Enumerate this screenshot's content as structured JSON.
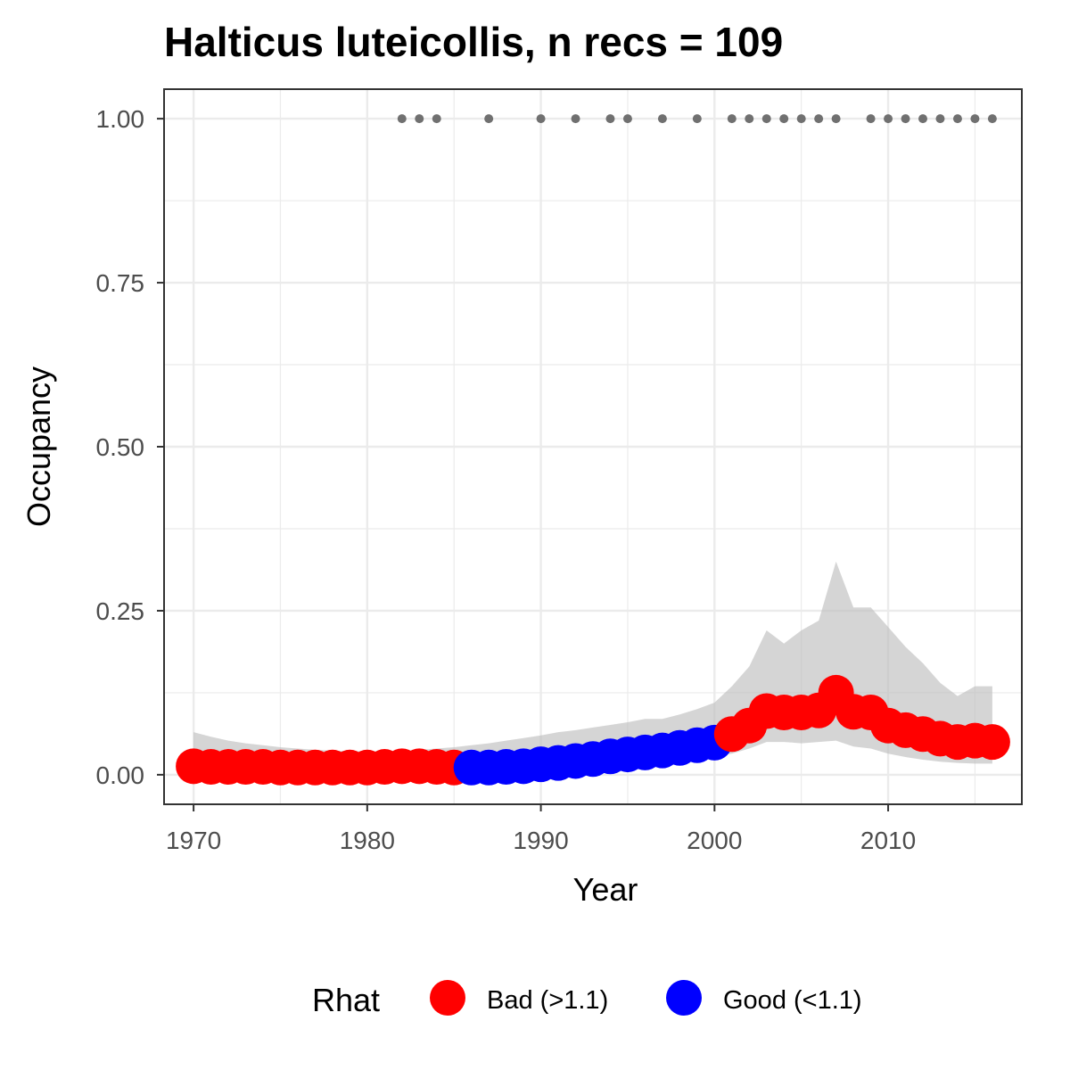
{
  "chart_data": {
    "type": "line",
    "title": "Halticus luteicollis, n recs = 109",
    "xlabel": "Year",
    "ylabel": "Occupancy",
    "xlim": [
      1968.3,
      2017.7
    ],
    "ylim": [
      -0.045,
      1.045
    ],
    "x_ticks": [
      1970,
      1980,
      1990,
      2000,
      2010
    ],
    "y_ticks": [
      0.0,
      0.25,
      0.5,
      0.75,
      1.0
    ],
    "x_tick_labels": [
      "1970",
      "1980",
      "1990",
      "2000",
      "2010"
    ],
    "y_tick_labels": [
      "0.00",
      "0.25",
      "0.50",
      "0.75",
      "1.00"
    ],
    "grid": true,
    "legend": {
      "title": "Rhat",
      "position": "bottom",
      "items": [
        {
          "label": "Bad (>1.1)",
          "color": "#ff0000"
        },
        {
          "label": "Good (<1.1)",
          "color": "#0000ff"
        }
      ]
    },
    "ribbon_color": "#bebebe",
    "record_point_color": "#707070",
    "series": [
      {
        "name": "Occupancy",
        "x": [
          1970,
          1971,
          1972,
          1973,
          1974,
          1975,
          1976,
          1977,
          1978,
          1979,
          1980,
          1981,
          1982,
          1983,
          1984,
          1985,
          1986,
          1987,
          1988,
          1989,
          1990,
          1991,
          1992,
          1993,
          1994,
          1995,
          1996,
          1997,
          1998,
          1999,
          2000,
          2001,
          2002,
          2003,
          2004,
          2005,
          2006,
          2007,
          2008,
          2009,
          2010,
          2011,
          2012,
          2013,
          2014,
          2015,
          2016
        ],
        "y": [
          0.013,
          0.012,
          0.012,
          0.012,
          0.012,
          0.011,
          0.011,
          0.011,
          0.011,
          0.011,
          0.011,
          0.012,
          0.013,
          0.013,
          0.012,
          0.011,
          0.011,
          0.011,
          0.012,
          0.013,
          0.016,
          0.018,
          0.021,
          0.024,
          0.028,
          0.031,
          0.034,
          0.037,
          0.041,
          0.045,
          0.049,
          0.062,
          0.075,
          0.097,
          0.095,
          0.095,
          0.098,
          0.125,
          0.096,
          0.095,
          0.075,
          0.068,
          0.062,
          0.055,
          0.05,
          0.052,
          0.05
        ],
        "lower": [
          0.0,
          0.0,
          0.0,
          0.0,
          0.0,
          0.0,
          0.0,
          0.0,
          0.0,
          0.0,
          0.0,
          0.0,
          0.0,
          0.0,
          0.0,
          0.0,
          0.0,
          0.0,
          0.0,
          0.0,
          0.0,
          0.002,
          0.004,
          0.007,
          0.01,
          0.013,
          0.015,
          0.018,
          0.021,
          0.025,
          0.028,
          0.032,
          0.04,
          0.05,
          0.05,
          0.048,
          0.05,
          0.052,
          0.043,
          0.04,
          0.032,
          0.027,
          0.023,
          0.02,
          0.018,
          0.017,
          0.017
        ],
        "upper": [
          0.065,
          0.058,
          0.052,
          0.048,
          0.045,
          0.042,
          0.04,
          0.038,
          0.037,
          0.036,
          0.036,
          0.036,
          0.037,
          0.038,
          0.04,
          0.042,
          0.045,
          0.048,
          0.052,
          0.056,
          0.06,
          0.065,
          0.068,
          0.072,
          0.076,
          0.08,
          0.085,
          0.085,
          0.092,
          0.1,
          0.11,
          0.135,
          0.165,
          0.22,
          0.2,
          0.22,
          0.235,
          0.325,
          0.255,
          0.255,
          0.225,
          0.195,
          0.17,
          0.14,
          0.12,
          0.135,
          0.135
        ],
        "rhat": [
          "Bad (>1.1)",
          "Bad (>1.1)",
          "Bad (>1.1)",
          "Bad (>1.1)",
          "Bad (>1.1)",
          "Bad (>1.1)",
          "Bad (>1.1)",
          "Bad (>1.1)",
          "Bad (>1.1)",
          "Bad (>1.1)",
          "Bad (>1.1)",
          "Bad (>1.1)",
          "Bad (>1.1)",
          "Bad (>1.1)",
          "Bad (>1.1)",
          "Bad (>1.1)",
          "Good (<1.1)",
          "Good (<1.1)",
          "Good (<1.1)",
          "Good (<1.1)",
          "Good (<1.1)",
          "Good (<1.1)",
          "Good (<1.1)",
          "Good (<1.1)",
          "Good (<1.1)",
          "Good (<1.1)",
          "Good (<1.1)",
          "Good (<1.1)",
          "Good (<1.1)",
          "Good (<1.1)",
          "Good (<1.1)",
          "Bad (>1.1)",
          "Bad (>1.1)",
          "Bad (>1.1)",
          "Bad (>1.1)",
          "Bad (>1.1)",
          "Bad (>1.1)",
          "Bad (>1.1)",
          "Bad (>1.1)",
          "Bad (>1.1)",
          "Bad (>1.1)",
          "Bad (>1.1)",
          "Bad (>1.1)",
          "Bad (>1.1)",
          "Bad (>1.1)",
          "Bad (>1.1)",
          "Bad (>1.1)"
        ]
      },
      {
        "name": "Records",
        "x": [
          1982,
          1983,
          1984,
          1987,
          1990,
          1992,
          1994,
          1995,
          1997,
          1999,
          2001,
          2002,
          2003,
          2004,
          2005,
          2006,
          2007,
          2009,
          2010,
          2011,
          2012,
          2013,
          2014,
          2015,
          2016
        ],
        "y": [
          1,
          1,
          1,
          1,
          1,
          1,
          1,
          1,
          1,
          1,
          1,
          1,
          1,
          1,
          1,
          1,
          1,
          1,
          1,
          1,
          1,
          1,
          1,
          1,
          1
        ]
      }
    ]
  }
}
